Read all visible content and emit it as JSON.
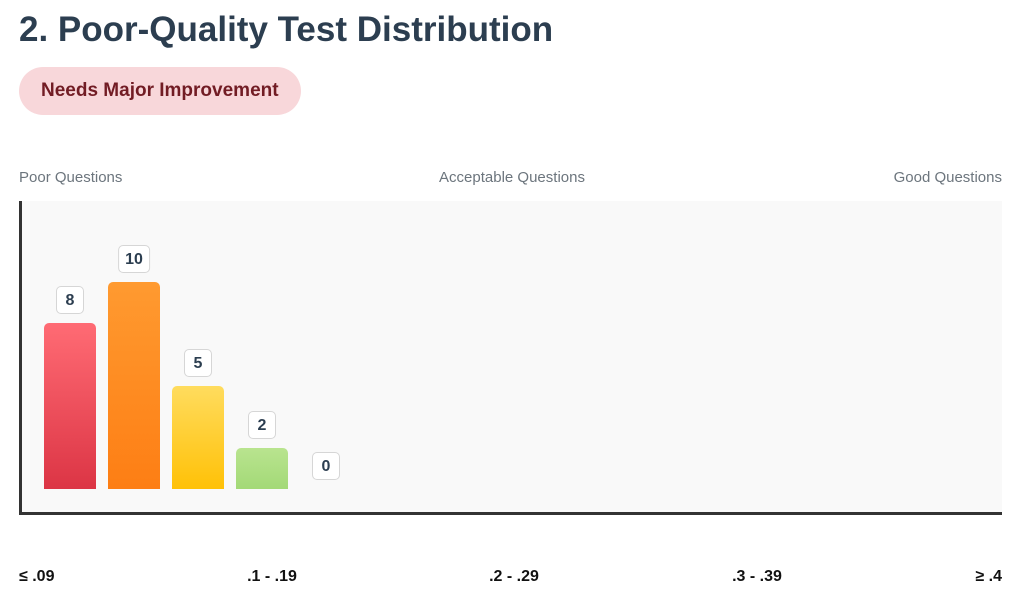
{
  "header": {
    "title": "2. Poor-Quality Test Distribution",
    "badge": "Needs Major Improvement"
  },
  "zones": {
    "left": "Poor Questions",
    "center": "Acceptable Questions",
    "right": "Good Questions"
  },
  "colors": {
    "title": "#2c3e50",
    "badge_bg": "#f8d7da",
    "badge_text": "#721c24",
    "bar_gradients": [
      [
        "#ff6b74",
        "#dc3545"
      ],
      [
        "#ff9a30",
        "#fd7e14"
      ],
      [
        "#ffdc5e",
        "#ffc107"
      ],
      [
        "#b9e48f",
        "#a3d977"
      ],
      [
        "#c8e6c9",
        "#a5d6a7"
      ]
    ]
  },
  "chart_data": {
    "type": "bar",
    "categories": [
      "≤ .09",
      ".1 - .19",
      ".2 - .29",
      ".3 - .39",
      "≥ .4"
    ],
    "values": [
      8,
      10,
      5,
      2,
      0
    ],
    "ylim": [
      0,
      10
    ],
    "grid": false,
    "legend": "none"
  }
}
